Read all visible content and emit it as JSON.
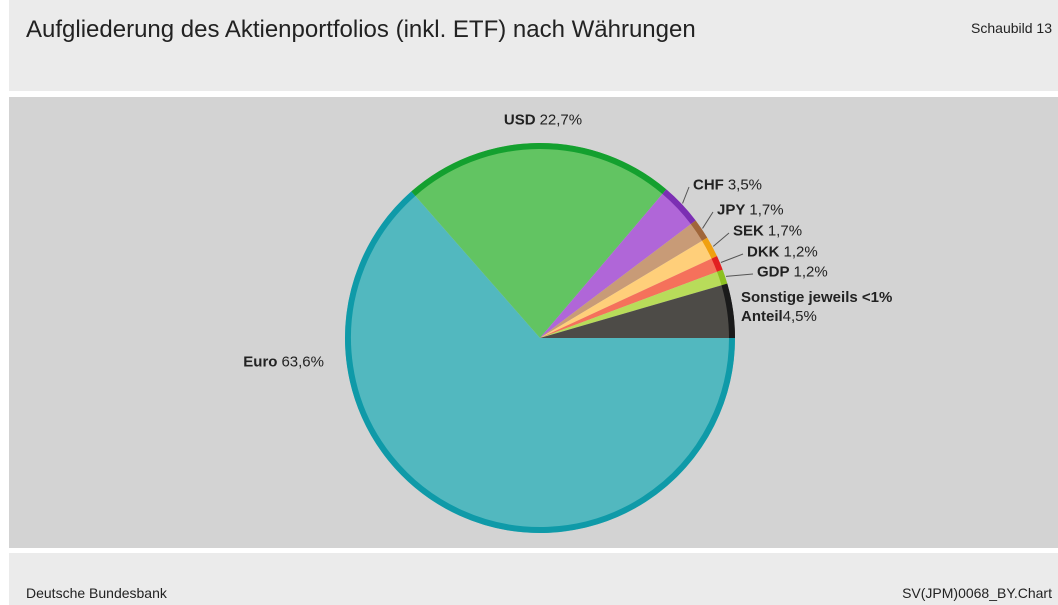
{
  "chart_data": {
    "type": "pie",
    "title": "Aufgliederung des Aktienportfolios (inkl. ETF) nach Währungen",
    "figure_label": "Schaubild 13",
    "source": "Deutsche Bundesbank",
    "chart_id": "SV(JPM)0068_BY.Chart",
    "categories": [
      "Euro",
      "USD",
      "CHF",
      "JPY",
      "SEK",
      "DKK",
      "GDP",
      "Sonstige jeweils <1% Anteil"
    ],
    "values": [
      63.6,
      22.7,
      3.5,
      1.7,
      1.7,
      1.2,
      1.2,
      4.5
    ],
    "value_labels": [
      "63,6%",
      "22,7%",
      "3,5%",
      "1,7%",
      "1,7%",
      "1,2%",
      "1,2%",
      "4,5%"
    ],
    "colors": [
      "#52b8bf",
      "#62c462",
      "#b066d8",
      "#c89b77",
      "#ffcf7a",
      "#f5715b",
      "#b8dc5a",
      "#4d4b47"
    ],
    "border_colors": [
      "#0f9aa8",
      "#14a02f",
      "#7b2fb3",
      "#a0663a",
      "#f0a010",
      "#e22020",
      "#8cc021",
      "#1a1a1a"
    ]
  }
}
